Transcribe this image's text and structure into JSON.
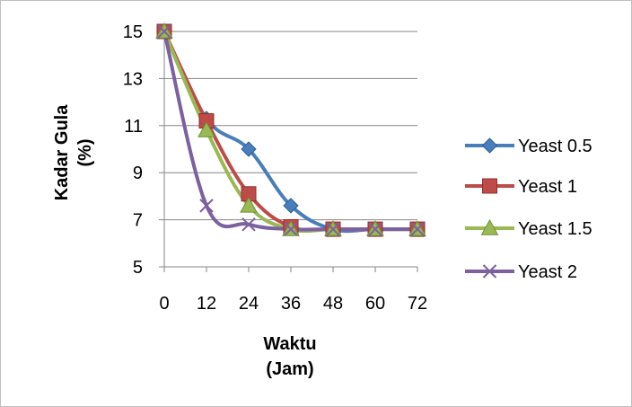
{
  "chart_data": {
    "type": "line",
    "title": "",
    "xlabel_lines": [
      "Waktu",
      "(Jam)"
    ],
    "ylabel_lines": [
      "Kadar Gula",
      "(%)"
    ],
    "x": [
      0,
      12,
      24,
      36,
      48,
      60,
      72
    ],
    "ylim": [
      5,
      15
    ],
    "yticks": [
      5,
      7,
      9,
      11,
      13,
      15
    ],
    "grid": "horizontal",
    "legend_position": "right",
    "series": [
      {
        "name": "Yeast 0.5",
        "color": "#4A7EBB",
        "marker": "diamond",
        "values": [
          15,
          11.3,
          10.0,
          7.6,
          6.6,
          6.6,
          6.6
        ]
      },
      {
        "name": "Yeast 1",
        "color": "#BE4B48",
        "marker": "square",
        "values": [
          15,
          11.2,
          8.1,
          6.7,
          6.6,
          6.6,
          6.6
        ]
      },
      {
        "name": "Yeast 1.5",
        "color": "#98B954",
        "marker": "triangle",
        "values": [
          15,
          10.8,
          7.6,
          6.6,
          6.6,
          6.6,
          6.6
        ]
      },
      {
        "name": "Yeast 2",
        "color": "#7D60A0",
        "marker": "x",
        "values": [
          15,
          7.6,
          6.8,
          6.6,
          6.6,
          6.6,
          6.6
        ]
      }
    ]
  }
}
